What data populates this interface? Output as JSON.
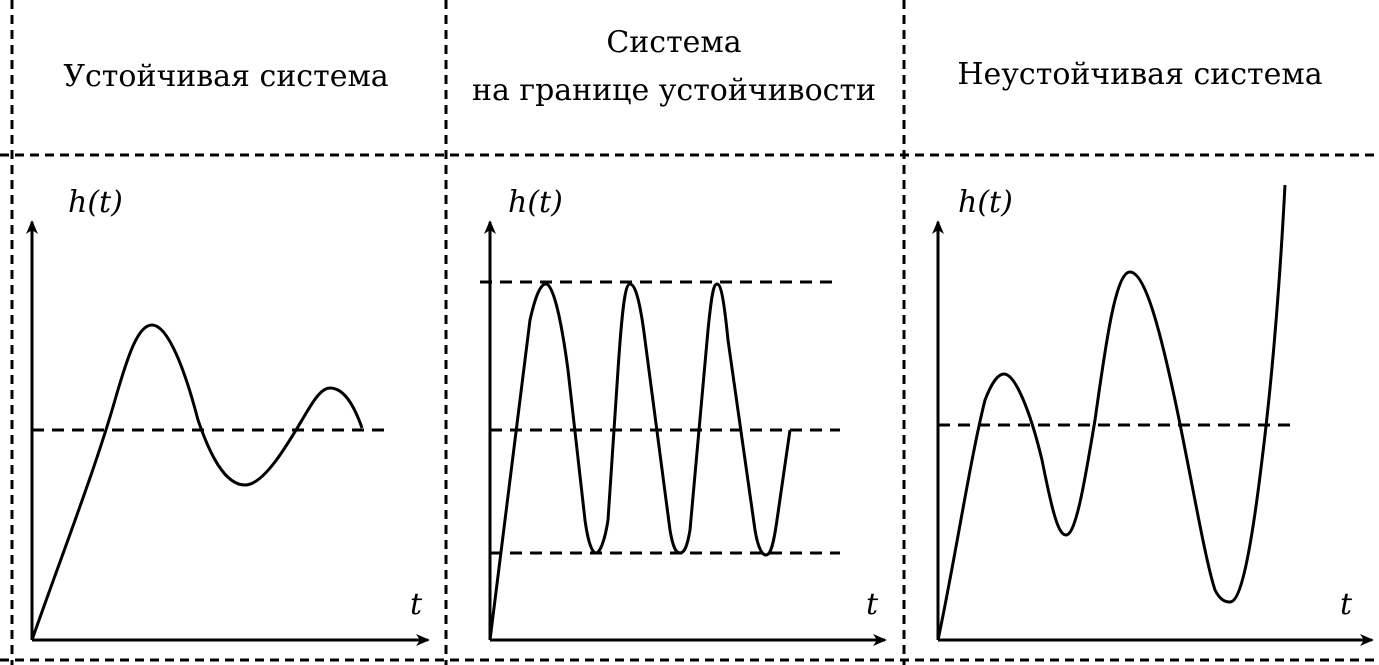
{
  "panels": [
    {
      "id": "stable",
      "title_lines": [
        "Устойчивая система"
      ],
      "y_axis_label": "h(t)",
      "x_axis_label": "t"
    },
    {
      "id": "boundary",
      "title_lines": [
        "Система",
        "на границе устойчивости"
      ],
      "y_axis_label": "h(t)",
      "x_axis_label": "t"
    },
    {
      "id": "unstable",
      "title_lines": [
        "Неустойчивая система"
      ],
      "y_axis_label": "h(t)",
      "x_axis_label": "t"
    }
  ],
  "colors": {
    "line": "#000000",
    "background": "#ffffff"
  }
}
